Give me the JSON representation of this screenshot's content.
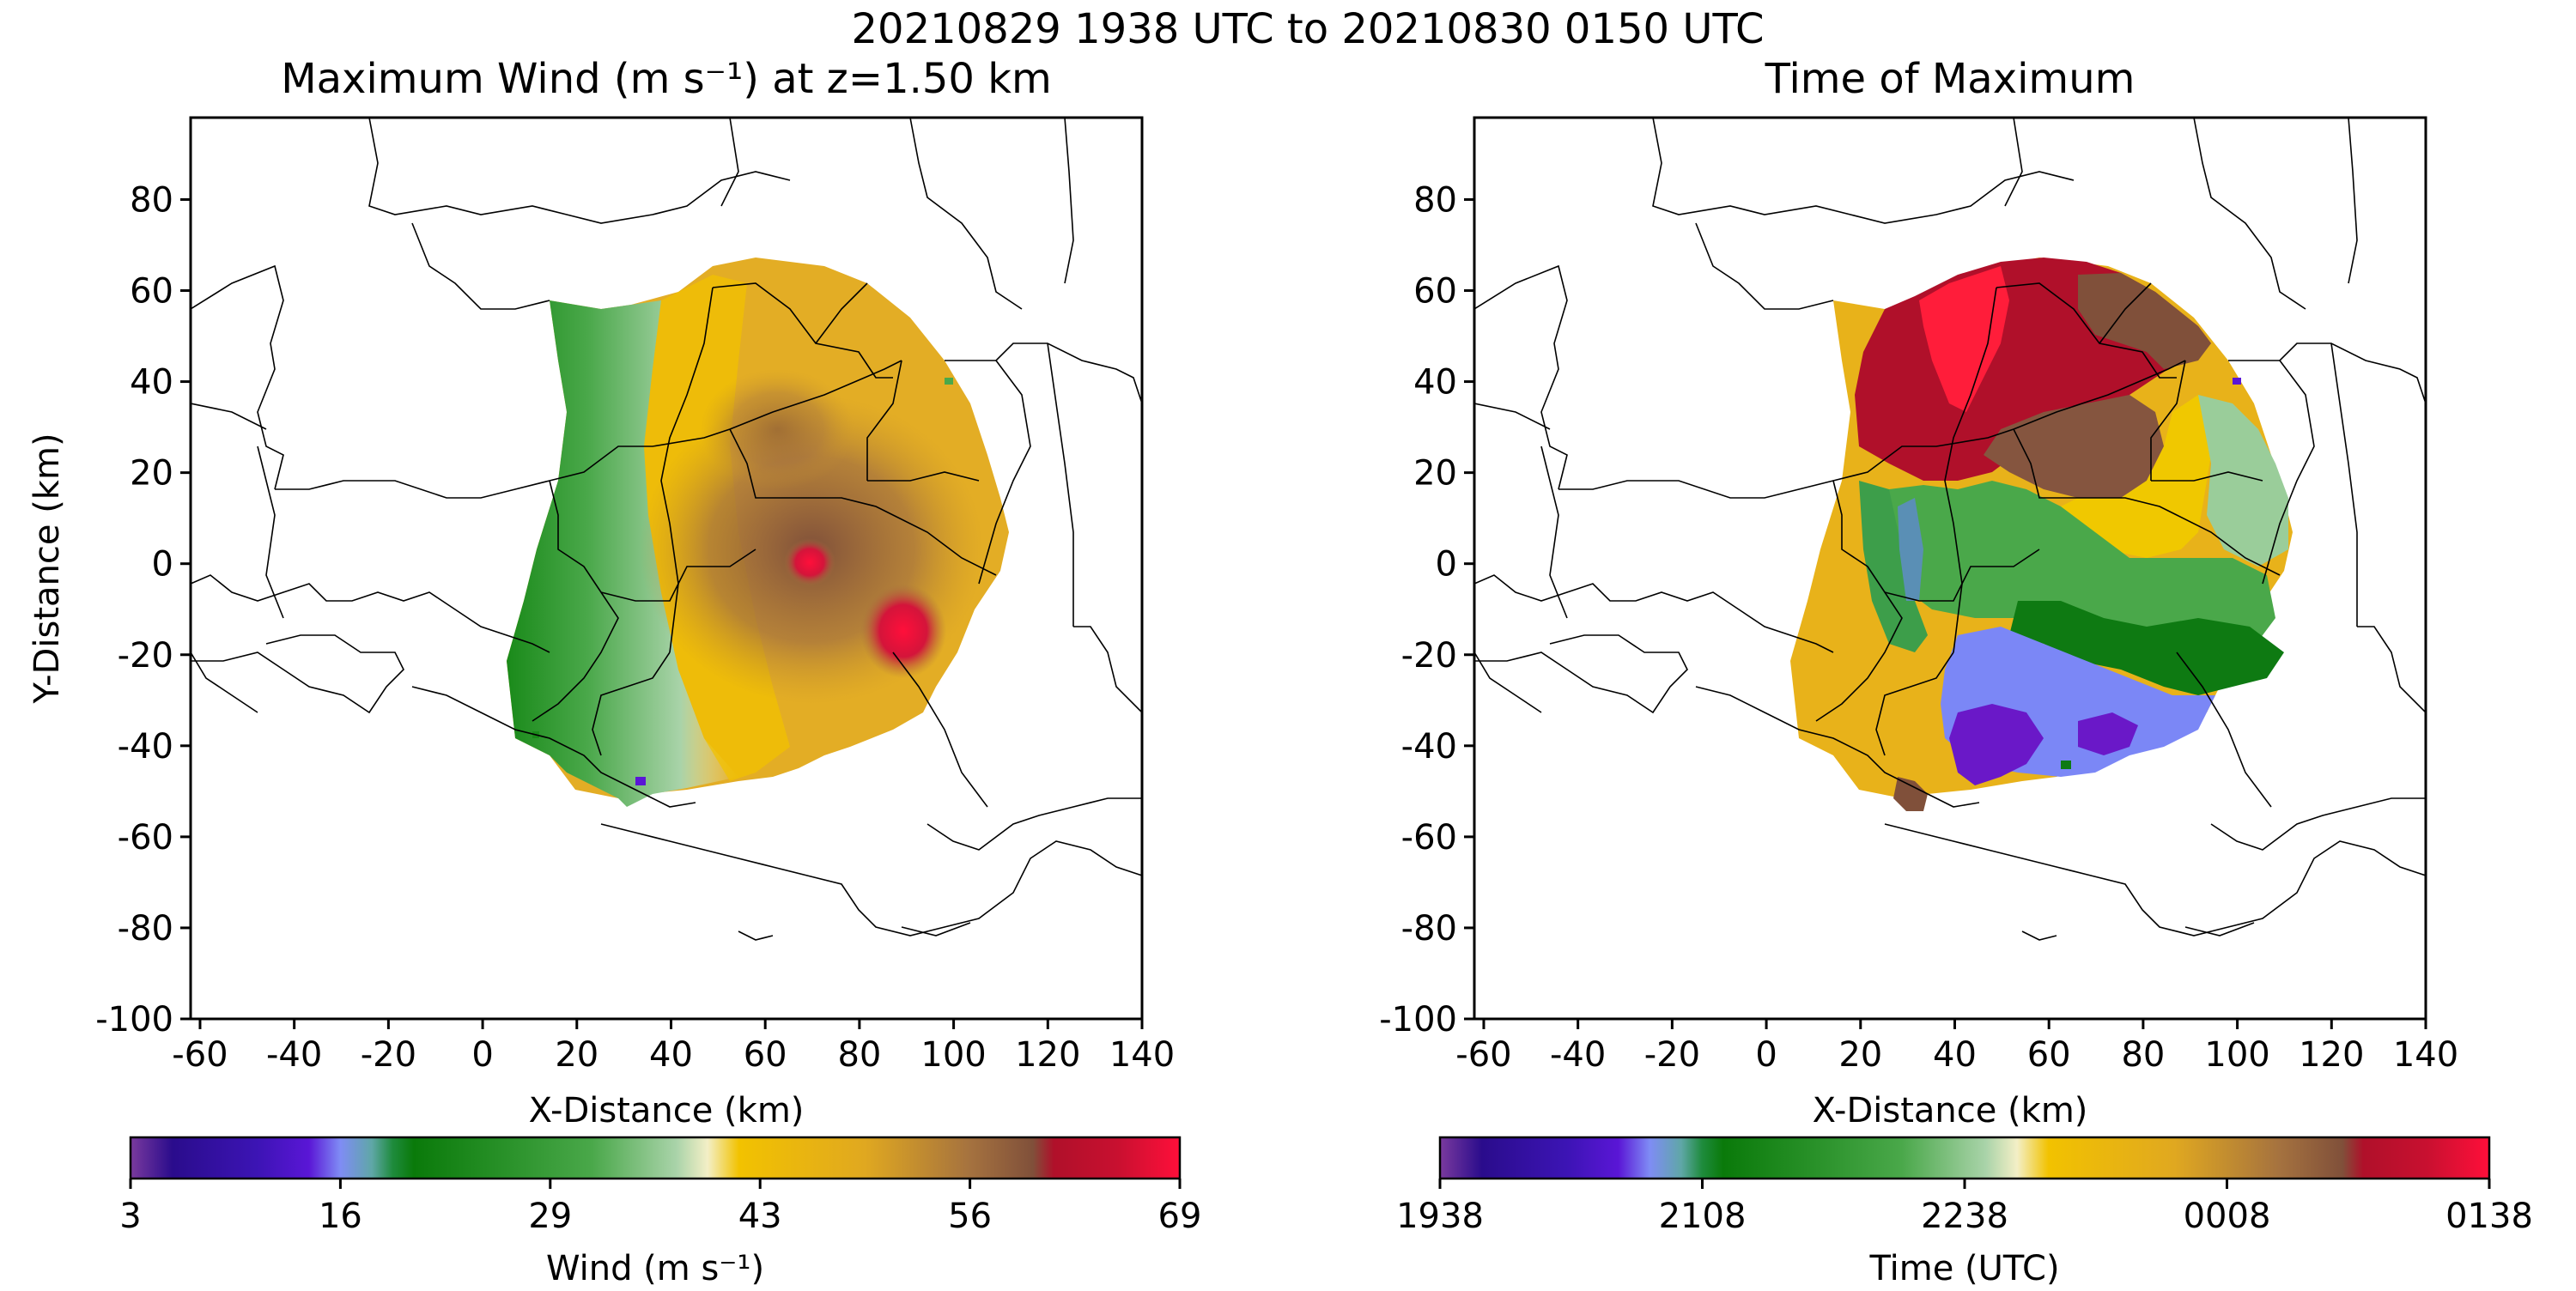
{
  "suptitle": "20210829 1938 UTC to 20210830 0150 UTC",
  "chart_data": [
    {
      "type": "heatmap",
      "title": "Maximum Wind (m s⁻¹) at z=1.50 km",
      "xlabel": "X-Distance (km)",
      "ylabel": "Y-Distance (km)",
      "xlim": [
        -62,
        140
      ],
      "ylim": [
        -100,
        98
      ],
      "xticks": [
        "-60",
        "-40",
        "-20",
        "0",
        "20",
        "40",
        "60",
        "80",
        "100",
        "120",
        "140"
      ],
      "yticks": [
        "80",
        "60",
        "40",
        "20",
        "0",
        "-20",
        "-40",
        "-60",
        "-80",
        "-100"
      ],
      "colorbar": {
        "label": "Wind (m s⁻¹)",
        "range": [
          3,
          69
        ],
        "ticks": [
          "3",
          "16",
          "29",
          "43",
          "56",
          "69"
        ]
      },
      "field_summary": {
        "west_band_values": "about 18–34 (greens / pale green)",
        "central_values": "about 38–50 (yellow / orange)",
        "east_core_values": "about 50–58 (browns)",
        "maxima": [
          {
            "x": 72,
            "y": 0,
            "value": 65
          },
          {
            "x": 90,
            "y": -15,
            "value": 67
          }
        ]
      },
      "colors": [
        "#7a3a9e",
        "#2a0c8c",
        "#5a16d6",
        "#7f8cf5",
        "#1e8b3c",
        "#0a7a0a",
        "#4aa84a",
        "#a9d3a9",
        "#f3efc6",
        "#f2c200",
        "#e0a820",
        "#a5723f",
        "#80503a",
        "#b0102a",
        "#ee2f4e",
        "#ff0f3a"
      ]
    },
    {
      "type": "heatmap",
      "title": "Time of Maximum",
      "xlabel": "X-Distance (km)",
      "ylabel": "",
      "xlim": [
        -62,
        140
      ],
      "ylim": [
        -100,
        98
      ],
      "xticks": [
        "-60",
        "-40",
        "-20",
        "0",
        "20",
        "40",
        "60",
        "80",
        "100",
        "120",
        "140"
      ],
      "yticks": [
        "80",
        "60",
        "40",
        "20",
        "0",
        "-20",
        "-40",
        "-60",
        "-80",
        "-100"
      ],
      "colorbar": {
        "label": "Time (UTC)",
        "range": [
          "1938",
          "0138"
        ],
        "ticks": [
          "1938",
          "2108",
          "2238",
          "0008",
          "0138"
        ]
      },
      "field_summary": {
        "south_west": "early times (purple / blue, about 1950–2030 UTC)",
        "center": "about 2100–2200 UTC (greens)",
        "west_and_east": "about 2250–2330 UTC (yellow / orange)",
        "north": "latest times (brown / red, about 0010–0130 UTC)"
      }
    }
  ]
}
